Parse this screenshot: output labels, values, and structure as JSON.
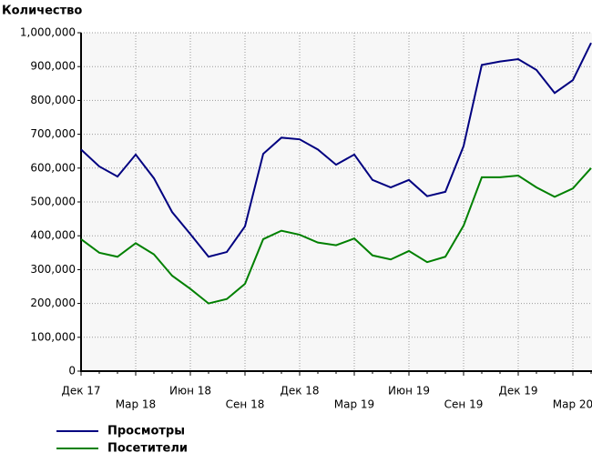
{
  "chart_data": {
    "type": "line",
    "y_label": "Количество",
    "categories": [
      "Дек 17",
      null,
      null,
      "Мар 18",
      null,
      null,
      "Июн 18",
      null,
      null,
      "Сен 18",
      null,
      null,
      "Дек 18",
      null,
      null,
      "Мар 19",
      null,
      null,
      "Июн 19",
      null,
      null,
      "Сен 19",
      null,
      null,
      "Дек 19",
      null,
      null,
      "Мар 20",
      null
    ],
    "series": [
      {
        "name": "Просмотры",
        "color": "#000080",
        "values": [
          655000,
          605000,
          575000,
          640000,
          570000,
          470000,
          405000,
          338000,
          352000,
          428000,
          642000,
          690000,
          685000,
          655000,
          610000,
          640000,
          565000,
          543000,
          565000,
          517000,
          530000,
          665000,
          905000,
          915000,
          922000,
          890000,
          822000,
          860000,
          970000
        ]
      },
      {
        "name": "Посетители",
        "color": "#008000",
        "values": [
          390000,
          350000,
          338000,
          378000,
          345000,
          282000,
          243000,
          200000,
          213000,
          258000,
          390000,
          415000,
          403000,
          380000,
          372000,
          392000,
          342000,
          330000,
          355000,
          322000,
          338000,
          430000,
          573000,
          573000,
          578000,
          543000,
          515000,
          540000,
          600000
        ]
      }
    ],
    "ylim": [
      0,
      1000000
    ],
    "yticks": [
      0,
      {
        "value": 100000,
        "label": "100,000"
      },
      {
        "value": 200000,
        "label": "200,000"
      },
      {
        "value": 300000,
        "label": "300,000"
      },
      {
        "value": 400000,
        "label": "400,000"
      },
      {
        "value": 500000,
        "label": "500,000"
      },
      {
        "value": 600000,
        "label": "600,000"
      },
      {
        "value": 700000,
        "label": "700,000"
      },
      {
        "value": 800000,
        "label": "800,000"
      },
      {
        "value": 900000,
        "label": "900,000"
      },
      {
        "value": 1000000,
        "label": "1,000,000"
      }
    ],
    "grid": true
  }
}
